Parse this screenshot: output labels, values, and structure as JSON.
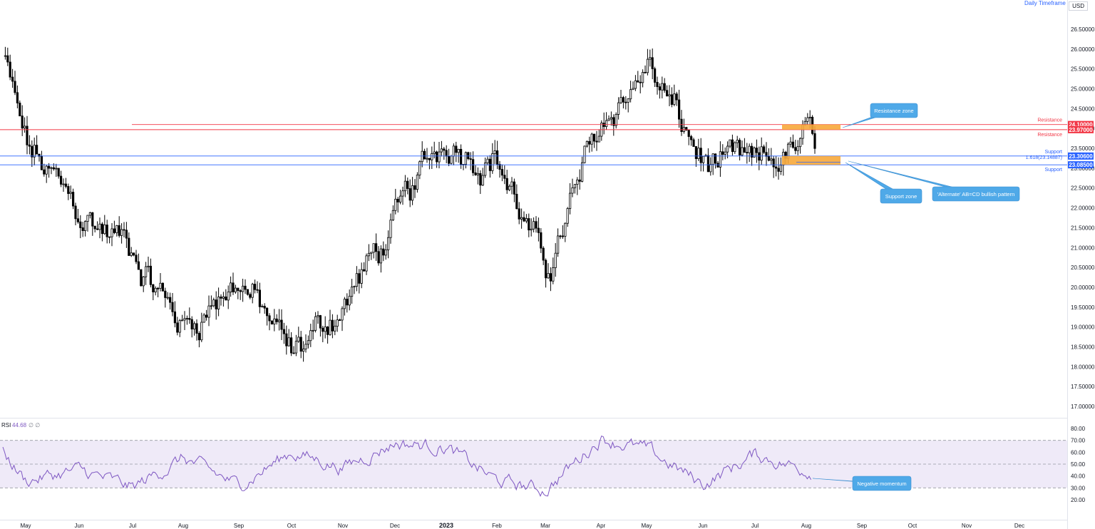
{
  "header": {
    "timeframe": "Daily Timeframe",
    "currency": "USD"
  },
  "rsi_legend": {
    "name": "RSI",
    "value": "44.68",
    "extra": "∅ ∅"
  },
  "colors": {
    "resistance": "#f23645",
    "support": "#2962ff",
    "zone": "#f7a93b",
    "callout": "#4fa9e8",
    "candle": "#000000",
    "rsi_line": "#7e57c2",
    "rsi_band": "#efeaf8"
  },
  "price_axis": {
    "min": 17.0,
    "max": 26.5,
    "ticks": [
      "26.50000",
      "26.00000",
      "25.50000",
      "25.00000",
      "24.50000",
      "24.00000",
      "23.50000",
      "23.00000",
      "22.50000",
      "22.00000",
      "21.50000",
      "21.00000",
      "20.50000",
      "20.00000",
      "19.50000",
      "19.00000",
      "18.50000",
      "18.00000",
      "17.50000",
      "17.00000"
    ]
  },
  "time_axis": [
    "May",
    "Jun",
    "Jul",
    "Aug",
    "Sep",
    "Oct",
    "Nov",
    "Dec",
    "2023",
    "Feb",
    "Mar",
    "Apr",
    "May",
    "Jun",
    "Jul",
    "Aug",
    "Sep",
    "Oct",
    "Nov",
    "Dec"
  ],
  "levels": [
    {
      "name": "Resistance",
      "value": 24.1,
      "label": "24.10000",
      "kind": "resistance"
    },
    {
      "name": "Resistance",
      "value": 23.97,
      "label": "23.97000",
      "kind": "resistance"
    },
    {
      "name": "Support",
      "value": 23.306,
      "label": "23.30600",
      "kind": "support"
    },
    {
      "name": "Support",
      "value": 23.085,
      "label": "23.08500",
      "kind": "support"
    }
  ],
  "fib_label": "1.618(23.14887)",
  "callouts": {
    "resistance_zone": "Resistance zone",
    "support_zone": "Support zone",
    "pattern": "'Alternate' AB=CD bullish pattern",
    "momentum": "Negative momentum"
  },
  "rsi_axis": {
    "ticks": [
      "80.00",
      "70.00",
      "60.00",
      "50.00",
      "40.00",
      "30.00",
      "20.00"
    ],
    "upper": 70,
    "middle": 50,
    "lower": 30
  },
  "chart_data": {
    "type": "candlestick",
    "title": "",
    "ylabel": "USD",
    "ylim": [
      17.0,
      26.5
    ],
    "x": [
      "May",
      "Jun",
      "Jul",
      "Aug",
      "Sep",
      "Oct",
      "Nov",
      "Dec",
      "2023",
      "Feb",
      "Mar",
      "Apr",
      "May",
      "Jun",
      "Jul",
      "Aug"
    ],
    "close": [
      23.5,
      21.8,
      21.0,
      19.0,
      20.3,
      18.2,
      19.6,
      21.5,
      23.8,
      23.4,
      20.3,
      24.0,
      25.6,
      23.1,
      22.8,
      23.6
    ],
    "rsi": {
      "name": "RSI",
      "current": 44.68,
      "ylim": [
        20,
        80
      ],
      "x": [
        "May",
        "Jun",
        "Jul",
        "Aug",
        "Sep",
        "Oct",
        "Nov",
        "Dec",
        "2023",
        "Feb",
        "Mar",
        "Apr",
        "May",
        "Jun",
        "Jul",
        "Aug"
      ],
      "values": [
        36,
        45,
        30,
        55,
        32,
        60,
        47,
        68,
        64,
        36,
        28,
        72,
        62,
        33,
        58,
        45
      ]
    }
  }
}
